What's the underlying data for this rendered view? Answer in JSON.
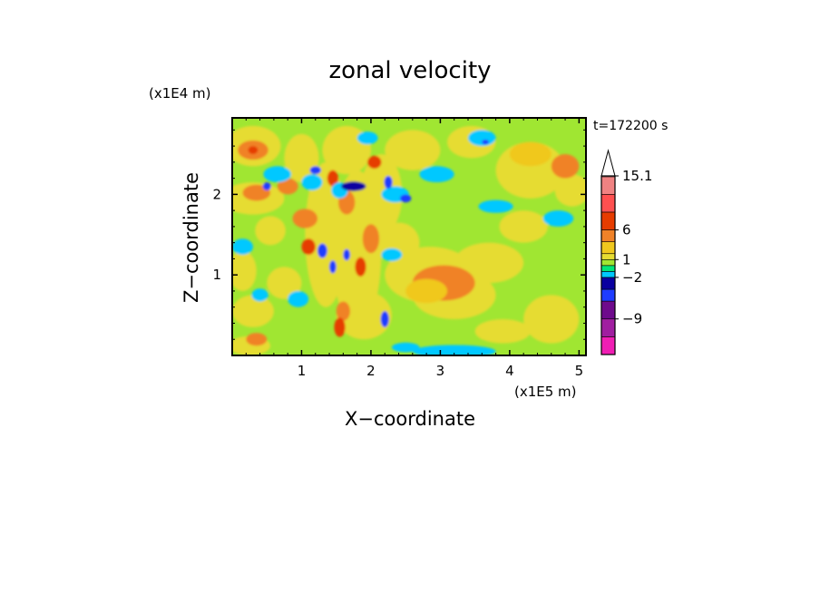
{
  "chart_data": {
    "type": "heatmap",
    "title": "zonal velocity",
    "xlabel": "X−coordinate",
    "ylabel": "Z−coordinate",
    "x_scale_label": "(x1E5 m)",
    "y_scale_label": "(x1E4 m)",
    "time_label": "t=172200 s",
    "xlim": [
      0,
      5.1
    ],
    "ylim": [
      0,
      2.95
    ],
    "x_ticks": [
      "1",
      "2",
      "3",
      "4",
      "5"
    ],
    "y_ticks": [
      "1",
      "2"
    ],
    "colorbar": {
      "levels": [
        -15,
        -12,
        -9,
        -6,
        -4,
        -2,
        -1,
        0,
        1,
        2,
        4,
        6,
        9,
        12,
        15.1
      ],
      "colors": [
        "#f01eb4",
        "#a01ea0",
        "#6e0a8c",
        "#1e3cff",
        "#0a00a0",
        "#00c8ff",
        "#00e678",
        "#a0e632",
        "#e6dc32",
        "#f0c81e",
        "#f08228",
        "#e63c00",
        "#ff5050",
        "#f08282",
        "#f5b4b4"
      ],
      "tick_labels": [
        "15.1",
        "6",
        "1",
        "−2",
        "−9"
      ],
      "extend": "max"
    }
  }
}
